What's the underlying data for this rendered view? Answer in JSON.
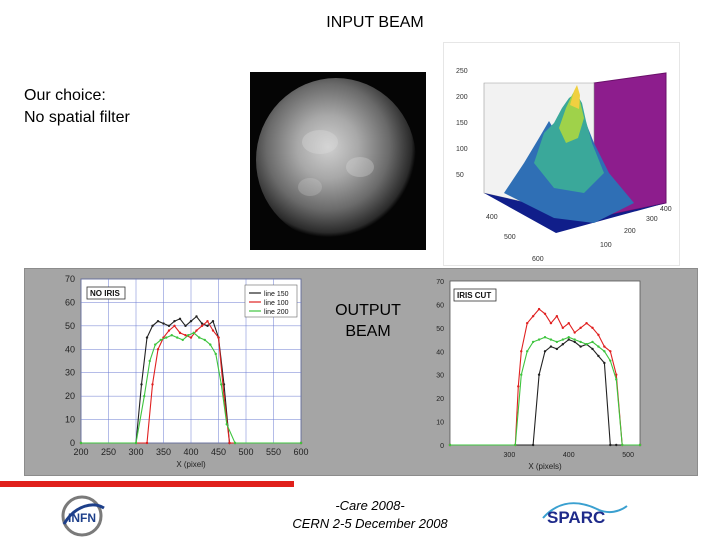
{
  "slide": {
    "title": "INPUT BEAM",
    "choice_line1": "Our choice:",
    "choice_line2": "No spatial filter",
    "output_line1": "OUTPUT",
    "output_line2": "BEAM",
    "footer_line1": "-Care 2008-",
    "footer_line2": "CERN 2-5 December 2008",
    "logo_left": "INFN",
    "logo_right": "SPARC",
    "accent": "#e0201b"
  },
  "chart_data": [
    {
      "type": "line",
      "title": "NO IRIS",
      "xlabel": "X (pixel)",
      "ylabel": "",
      "xlim": [
        200,
        600
      ],
      "ylim": [
        0,
        70
      ],
      "x_ticks": [
        "200",
        "250",
        "300",
        "350",
        "400",
        "450",
        "500",
        "550",
        "600"
      ],
      "y_ticks": [
        "0",
        "10",
        "20",
        "30",
        "40",
        "50",
        "60",
        "70"
      ],
      "legend": "top-right",
      "series": [
        {
          "name": "line 150",
          "color": "#222222",
          "x": [
            200,
            300,
            310,
            320,
            330,
            340,
            350,
            360,
            370,
            380,
            390,
            400,
            410,
            420,
            430,
            440,
            450,
            460,
            470,
            480,
            600
          ],
          "y": [
            0,
            0,
            25,
            45,
            50,
            52,
            51,
            50,
            52,
            53,
            50,
            52,
            54,
            51,
            50,
            52,
            45,
            25,
            0,
            0,
            0
          ]
        },
        {
          "name": "line 100",
          "color": "#e02020",
          "x": [
            200,
            320,
            330,
            340,
            350,
            360,
            370,
            380,
            390,
            400,
            410,
            420,
            430,
            440,
            450,
            460,
            470,
            600
          ],
          "y": [
            0,
            0,
            25,
            40,
            45,
            48,
            50,
            47,
            46,
            45,
            48,
            50,
            52,
            48,
            45,
            20,
            0,
            0
          ]
        },
        {
          "name": "line 200",
          "color": "#3ec43e",
          "x": [
            200,
            300,
            315,
            325,
            335,
            345,
            355,
            365,
            375,
            385,
            395,
            405,
            415,
            425,
            435,
            445,
            455,
            465,
            480,
            600
          ],
          "y": [
            0,
            0,
            20,
            35,
            42,
            44,
            45,
            46,
            45,
            44,
            46,
            47,
            45,
            44,
            42,
            38,
            25,
            8,
            0,
            0
          ]
        }
      ]
    },
    {
      "type": "line",
      "title": "IRIS CUT",
      "xlabel": "X (pixels)",
      "ylabel": "",
      "xlim": [
        200,
        520
      ],
      "ylim": [
        0,
        70
      ],
      "x_ticks": [
        "300",
        "400",
        "500"
      ],
      "y_ticks": [
        "0",
        "10",
        "20",
        "30",
        "40",
        "50",
        "60",
        "70"
      ],
      "series": [
        {
          "name": "black",
          "color": "#222222",
          "x": [
            200,
            340,
            350,
            360,
            370,
            380,
            390,
            400,
            410,
            420,
            430,
            440,
            450,
            460,
            470,
            480,
            520
          ],
          "y": [
            0,
            0,
            30,
            40,
            42,
            41,
            43,
            45,
            44,
            42,
            43,
            41,
            38,
            35,
            0,
            0,
            0
          ]
        },
        {
          "name": "red",
          "color": "#e02020",
          "x": [
            200,
            310,
            315,
            320,
            330,
            340,
            350,
            360,
            370,
            380,
            390,
            400,
            410,
            420,
            430,
            440,
            450,
            460,
            470,
            480,
            490,
            520
          ],
          "y": [
            0,
            0,
            25,
            40,
            52,
            55,
            58,
            56,
            52,
            55,
            50,
            52,
            48,
            50,
            52,
            50,
            47,
            42,
            40,
            30,
            0,
            0
          ]
        },
        {
          "name": "green",
          "color": "#3ec43e",
          "x": [
            200,
            310,
            320,
            330,
            340,
            350,
            360,
            370,
            380,
            390,
            400,
            410,
            420,
            430,
            440,
            450,
            460,
            470,
            480,
            490,
            520
          ],
          "y": [
            0,
            0,
            30,
            40,
            44,
            45,
            46,
            45,
            44,
            45,
            46,
            45,
            44,
            43,
            44,
            42,
            40,
            36,
            28,
            0,
            0
          ]
        }
      ]
    },
    {
      "type": "area",
      "title": "",
      "y_ticks": [
        "50",
        "100",
        "150",
        "200",
        "250"
      ],
      "x_ticks": [
        "400",
        "500",
        "600"
      ],
      "z_ticks": [
        "100",
        "200",
        "300",
        "400"
      ],
      "zlim": [
        0,
        250
      ]
    }
  ]
}
